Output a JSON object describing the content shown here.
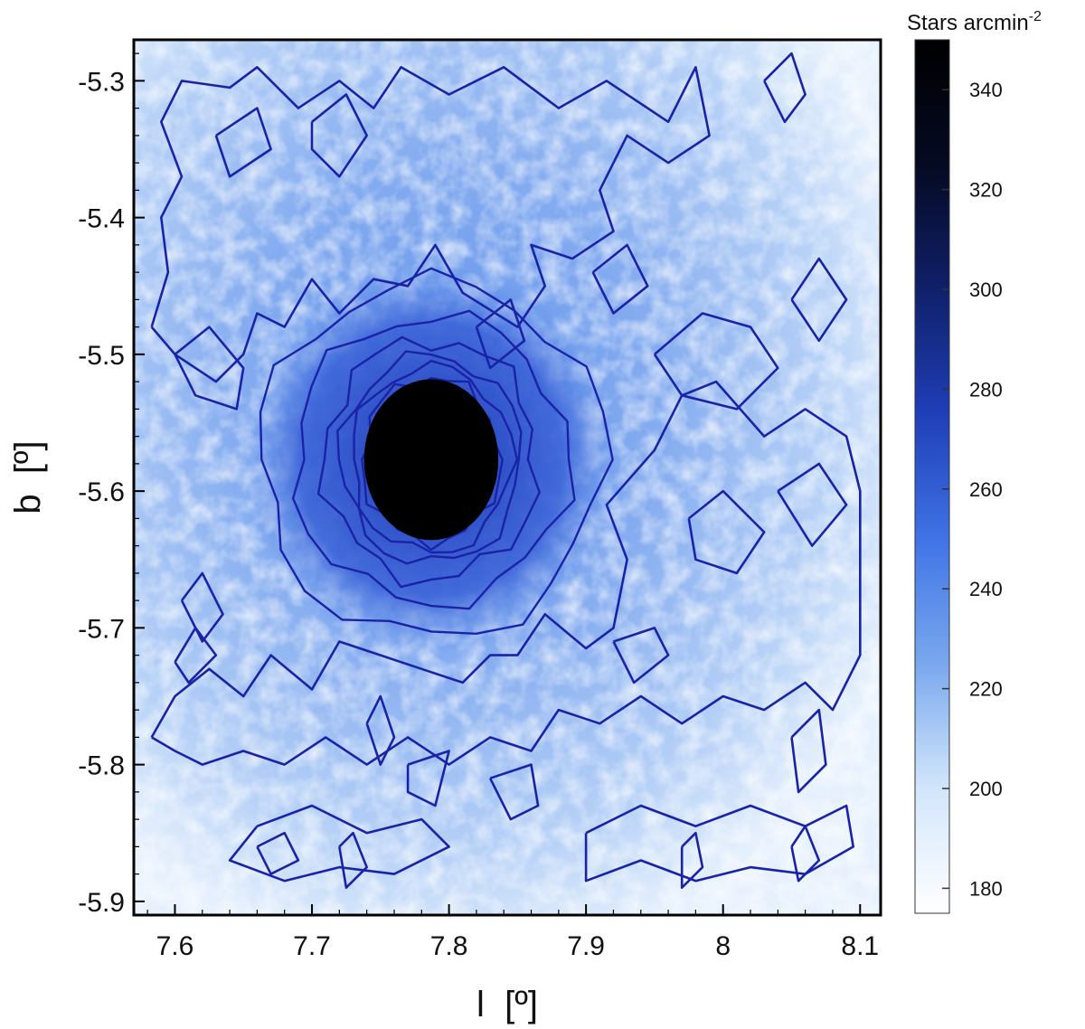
{
  "chart_data": {
    "type": "heatmap",
    "xlabel": "l  [º]",
    "ylabel": "b  [º]",
    "xlim": [
      7.57,
      8.115
    ],
    "ylim": [
      -5.91,
      -5.27
    ],
    "x_ticks": [
      7.6,
      7.7,
      7.8,
      7.9,
      8.0,
      8.1
    ],
    "x_tick_labels": [
      "7.6",
      "7.7",
      "7.8",
      "7.9",
      "8",
      "8.1"
    ],
    "y_ticks": [
      -5.3,
      -5.4,
      -5.5,
      -5.6,
      -5.7,
      -5.8,
      -5.9
    ],
    "y_tick_labels": [
      "-5.3",
      "-5.4",
      "-5.5",
      "-5.6",
      "-5.7",
      "-5.8",
      "-5.9"
    ],
    "colorbar": {
      "title": "Stars arcmin",
      "title_exponent": "-2",
      "range": [
        175,
        350
      ],
      "ticks": [
        180,
        200,
        220,
        240,
        260,
        280,
        300,
        320,
        340
      ],
      "tick_labels": [
        "180",
        "200",
        "220",
        "240",
        "260",
        "280",
        "300",
        "320",
        "340"
      ],
      "colors": [
        "#ffffff",
        "#d2e6fb",
        "#7aa8ee",
        "#3f73e6",
        "#1f3fb8",
        "#10206a",
        "#050a22",
        "#000000"
      ]
    },
    "cluster": {
      "l": 7.787,
      "b": -5.577,
      "peak_density": 350
    },
    "background_density": 215,
    "contour_color": "#1a23a8",
    "contours": [
      [
        [
          7.583,
          -5.48
        ],
        [
          7.595,
          -5.44
        ],
        [
          7.59,
          -5.4
        ],
        [
          7.605,
          -5.37
        ],
        [
          7.59,
          -5.33
        ],
        [
          7.605,
          -5.3
        ],
        [
          7.64,
          -5.305
        ],
        [
          7.66,
          -5.29
        ],
        [
          7.69,
          -5.32
        ],
        [
          7.72,
          -5.3
        ],
        [
          7.745,
          -5.32
        ],
        [
          7.765,
          -5.29
        ],
        [
          7.8,
          -5.31
        ],
        [
          7.84,
          -5.29
        ],
        [
          7.88,
          -5.32
        ],
        [
          7.915,
          -5.3
        ],
        [
          7.96,
          -5.33
        ],
        [
          7.98,
          -5.29
        ],
        [
          7.99,
          -5.34
        ],
        [
          7.96,
          -5.36
        ],
        [
          7.93,
          -5.34
        ],
        [
          7.91,
          -5.38
        ],
        [
          7.92,
          -5.41
        ],
        [
          7.89,
          -5.43
        ],
        [
          7.86,
          -5.42
        ],
        [
          7.87,
          -5.45
        ],
        [
          7.85,
          -5.48
        ],
        [
          7.81,
          -5.455
        ],
        [
          7.79,
          -5.42
        ],
        [
          7.77,
          -5.45
        ],
        [
          7.745,
          -5.445
        ],
        [
          7.72,
          -5.47
        ],
        [
          7.7,
          -5.445
        ],
        [
          7.68,
          -5.48
        ],
        [
          7.66,
          -5.47
        ],
        [
          7.65,
          -5.5
        ],
        [
          7.63,
          -5.52
        ],
        [
          7.6,
          -5.5
        ],
        [
          7.583,
          -5.48
        ]
      ],
      [
        [
          7.583,
          -5.78
        ],
        [
          7.6,
          -5.75
        ],
        [
          7.625,
          -5.73
        ],
        [
          7.65,
          -5.75
        ],
        [
          7.67,
          -5.72
        ],
        [
          7.7,
          -5.745
        ],
        [
          7.72,
          -5.71
        ],
        [
          7.75,
          -5.72
        ],
        [
          7.78,
          -5.73
        ],
        [
          7.81,
          -5.74
        ],
        [
          7.83,
          -5.72
        ],
        [
          7.85,
          -5.72
        ],
        [
          7.87,
          -5.69
        ],
        [
          7.9,
          -5.715
        ],
        [
          7.92,
          -5.7
        ],
        [
          7.93,
          -5.65
        ],
        [
          7.915,
          -5.61
        ],
        [
          7.95,
          -5.57
        ],
        [
          7.97,
          -5.53
        ],
        [
          7.995,
          -5.52
        ],
        [
          8.03,
          -5.56
        ],
        [
          8.06,
          -5.54
        ],
        [
          8.09,
          -5.56
        ],
        [
          8.1,
          -5.6
        ],
        [
          8.1,
          -5.72
        ],
        [
          8.08,
          -5.76
        ],
        [
          8.06,
          -5.74
        ],
        [
          8.03,
          -5.76
        ],
        [
          8.0,
          -5.75
        ],
        [
          7.97,
          -5.77
        ],
        [
          7.94,
          -5.75
        ],
        [
          7.91,
          -5.77
        ],
        [
          7.88,
          -5.76
        ],
        [
          7.86,
          -5.79
        ],
        [
          7.83,
          -5.78
        ],
        [
          7.8,
          -5.8
        ],
        [
          7.77,
          -5.78
        ],
        [
          7.74,
          -5.8
        ],
        [
          7.71,
          -5.78
        ],
        [
          7.68,
          -5.8
        ],
        [
          7.65,
          -5.79
        ],
        [
          7.62,
          -5.8
        ],
        [
          7.6,
          -5.79
        ],
        [
          7.583,
          -5.78
        ]
      ],
      [
        [
          7.66,
          -5.845
        ],
        [
          7.7,
          -5.83
        ],
        [
          7.74,
          -5.85
        ],
        [
          7.78,
          -5.84
        ],
        [
          7.8,
          -5.86
        ],
        [
          7.76,
          -5.88
        ],
        [
          7.72,
          -5.875
        ],
        [
          7.68,
          -5.885
        ],
        [
          7.64,
          -5.87
        ],
        [
          7.66,
          -5.845
        ]
      ],
      [
        [
          7.9,
          -5.85
        ],
        [
          7.94,
          -5.83
        ],
        [
          7.98,
          -5.845
        ],
        [
          8.02,
          -5.83
        ],
        [
          8.06,
          -5.845
        ],
        [
          8.09,
          -5.83
        ],
        [
          8.095,
          -5.86
        ],
        [
          8.06,
          -5.88
        ],
        [
          8.02,
          -5.875
        ],
        [
          7.98,
          -5.885
        ],
        [
          7.94,
          -5.87
        ],
        [
          7.9,
          -5.885
        ],
        [
          7.9,
          -5.85
        ]
      ],
      [
        [
          7.7,
          -5.33
        ],
        [
          7.725,
          -5.31
        ],
        [
          7.74,
          -5.34
        ],
        [
          7.72,
          -5.37
        ],
        [
          7.7,
          -5.35
        ],
        [
          7.7,
          -5.33
        ]
      ],
      [
        [
          7.63,
          -5.34
        ],
        [
          7.66,
          -5.32
        ],
        [
          7.67,
          -5.35
        ],
        [
          7.64,
          -5.37
        ],
        [
          7.63,
          -5.34
        ]
      ],
      [
        [
          7.6,
          -5.5
        ],
        [
          7.625,
          -5.48
        ],
        [
          7.65,
          -5.51
        ],
        [
          7.645,
          -5.54
        ],
        [
          7.615,
          -5.53
        ],
        [
          7.6,
          -5.5
        ]
      ],
      [
        [
          7.82,
          -5.48
        ],
        [
          7.845,
          -5.46
        ],
        [
          7.855,
          -5.49
        ],
        [
          7.83,
          -5.51
        ],
        [
          7.82,
          -5.48
        ]
      ],
      [
        [
          7.95,
          -5.5
        ],
        [
          7.985,
          -5.47
        ],
        [
          8.02,
          -5.48
        ],
        [
          8.04,
          -5.51
        ],
        [
          8.01,
          -5.54
        ],
        [
          7.97,
          -5.53
        ],
        [
          7.95,
          -5.5
        ]
      ],
      [
        [
          8.05,
          -5.46
        ],
        [
          8.07,
          -5.43
        ],
        [
          8.09,
          -5.46
        ],
        [
          8.07,
          -5.49
        ],
        [
          8.05,
          -5.46
        ]
      ],
      [
        [
          7.975,
          -5.62
        ],
        [
          8.0,
          -5.6
        ],
        [
          8.03,
          -5.63
        ],
        [
          8.01,
          -5.66
        ],
        [
          7.98,
          -5.65
        ],
        [
          7.975,
          -5.62
        ]
      ],
      [
        [
          8.04,
          -5.6
        ],
        [
          8.07,
          -5.58
        ],
        [
          8.09,
          -5.61
        ],
        [
          8.065,
          -5.64
        ],
        [
          8.04,
          -5.6
        ]
      ],
      [
        [
          8.05,
          -5.78
        ],
        [
          8.07,
          -5.76
        ],
        [
          8.075,
          -5.8
        ],
        [
          8.055,
          -5.82
        ],
        [
          8.05,
          -5.78
        ]
      ],
      [
        [
          7.83,
          -5.81
        ],
        [
          7.86,
          -5.8
        ],
        [
          7.865,
          -5.83
        ],
        [
          7.845,
          -5.84
        ],
        [
          7.83,
          -5.81
        ]
      ],
      [
        [
          7.77,
          -5.8
        ],
        [
          7.8,
          -5.79
        ],
        [
          7.79,
          -5.83
        ],
        [
          7.77,
          -5.82
        ],
        [
          7.77,
          -5.8
        ]
      ],
      [
        [
          7.605,
          -5.68
        ],
        [
          7.62,
          -5.66
        ],
        [
          7.635,
          -5.69
        ],
        [
          7.62,
          -5.71
        ],
        [
          7.605,
          -5.68
        ]
      ],
      [
        [
          7.6,
          -5.725
        ],
        [
          7.615,
          -5.7
        ],
        [
          7.63,
          -5.72
        ],
        [
          7.61,
          -5.74
        ],
        [
          7.6,
          -5.725
        ]
      ],
      [
        [
          7.74,
          -5.77
        ],
        [
          7.75,
          -5.75
        ],
        [
          7.76,
          -5.78
        ],
        [
          7.75,
          -5.8
        ],
        [
          7.74,
          -5.77
        ]
      ],
      [
        [
          7.92,
          -5.71
        ],
        [
          7.95,
          -5.7
        ],
        [
          7.96,
          -5.72
        ],
        [
          7.935,
          -5.74
        ],
        [
          7.92,
          -5.71
        ]
      ],
      [
        [
          7.905,
          -5.44
        ],
        [
          7.93,
          -5.42
        ],
        [
          7.945,
          -5.45
        ],
        [
          7.92,
          -5.47
        ],
        [
          7.905,
          -5.44
        ]
      ],
      [
        [
          8.03,
          -5.3
        ],
        [
          8.05,
          -5.28
        ],
        [
          8.06,
          -5.31
        ],
        [
          8.045,
          -5.33
        ],
        [
          8.03,
          -5.3
        ]
      ],
      [
        [
          7.66,
          -5.86
        ],
        [
          7.68,
          -5.85
        ],
        [
          7.69,
          -5.87
        ],
        [
          7.67,
          -5.88
        ],
        [
          7.66,
          -5.86
        ]
      ],
      [
        [
          7.72,
          -5.86
        ],
        [
          7.73,
          -5.85
        ],
        [
          7.74,
          -5.875
        ],
        [
          7.725,
          -5.89
        ],
        [
          7.72,
          -5.86
        ]
      ],
      [
        [
          7.97,
          -5.86
        ],
        [
          7.98,
          -5.85
        ],
        [
          7.985,
          -5.875
        ],
        [
          7.97,
          -5.89
        ],
        [
          7.97,
          -5.86
        ]
      ],
      [
        [
          8.05,
          -5.86
        ],
        [
          8.06,
          -5.845
        ],
        [
          8.07,
          -5.87
        ],
        [
          8.055,
          -5.885
        ],
        [
          8.05,
          -5.86
        ]
      ]
    ],
    "cluster_rings": [
      {
        "r_l": 0.05,
        "r_b": 0.06
      },
      {
        "r_l": 0.058,
        "r_b": 0.068
      },
      {
        "r_l": 0.066,
        "r_b": 0.076
      },
      {
        "r_l": 0.078,
        "r_b": 0.088
      },
      {
        "r_l": 0.1,
        "r_b": 0.105
      },
      {
        "r_l": 0.125,
        "r_b": 0.13
      }
    ]
  }
}
